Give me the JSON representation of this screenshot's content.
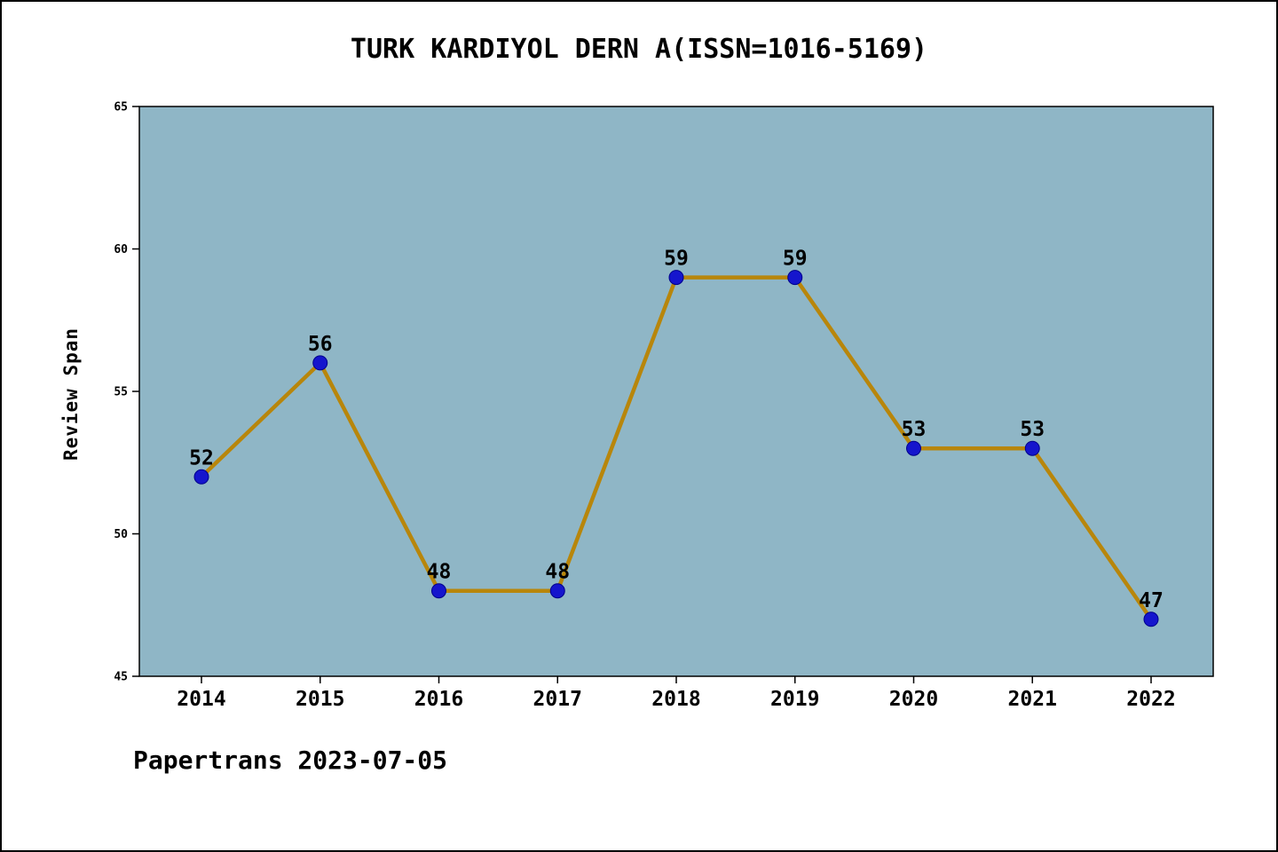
{
  "chart_data": {
    "type": "line",
    "title": "TURK KARDIYOL DERN A(ISSN=1016-5169)",
    "ylabel": "Review Span",
    "xlabel": "",
    "categories": [
      "2014",
      "2015",
      "2016",
      "2017",
      "2018",
      "2019",
      "2020",
      "2021",
      "2022"
    ],
    "values": [
      52,
      56,
      48,
      48,
      59,
      59,
      53,
      53,
      47
    ],
    "ylim": [
      45,
      65
    ],
    "yticks": [
      45,
      50,
      55,
      60,
      65
    ],
    "grid": false,
    "legend": "none",
    "plot_bg": "#8FB6C6",
    "line_color": "#B8860B",
    "marker_color": "#1515CD",
    "marker_edge_color": "#00008B"
  },
  "footer": {
    "text": "Papertrans 2023-07-05"
  }
}
